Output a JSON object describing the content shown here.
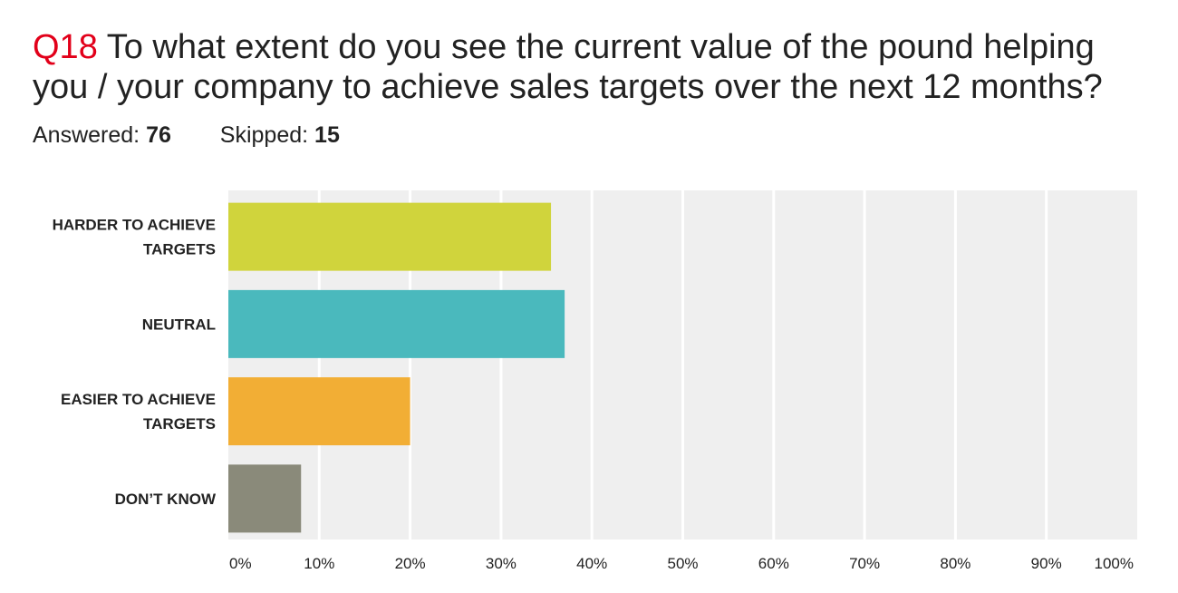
{
  "header": {
    "qnum": "Q18",
    "question": " To what extent do you see the current value of the pound helping you / your company to achieve sales targets over the next 12 months?",
    "answered_label": "Answered:",
    "answered_value": "76",
    "skipped_label": "Skipped:",
    "skipped_value": "15"
  },
  "chart_data": {
    "type": "bar",
    "orientation": "horizontal",
    "categories": [
      [
        "HARDER TO ACHIEVE",
        "TARGETS"
      ],
      [
        "NEUTRAL"
      ],
      [
        "EASIER TO ACHIEVE",
        "TARGETS"
      ],
      [
        "DON’T KNOW"
      ]
    ],
    "values": [
      35.5,
      37,
      20,
      8
    ],
    "colors": [
      "#d0d43c",
      "#4ab9bd",
      "#f2ae35",
      "#8a8a7a"
    ],
    "xlim": [
      0,
      100
    ],
    "xticks": [
      "0%",
      "10%",
      "20%",
      "30%",
      "40%",
      "50%",
      "60%",
      "70%",
      "80%",
      "90%",
      "100%"
    ],
    "grid": true,
    "plot_background": "#efefef",
    "grid_color": "#ffffff"
  }
}
